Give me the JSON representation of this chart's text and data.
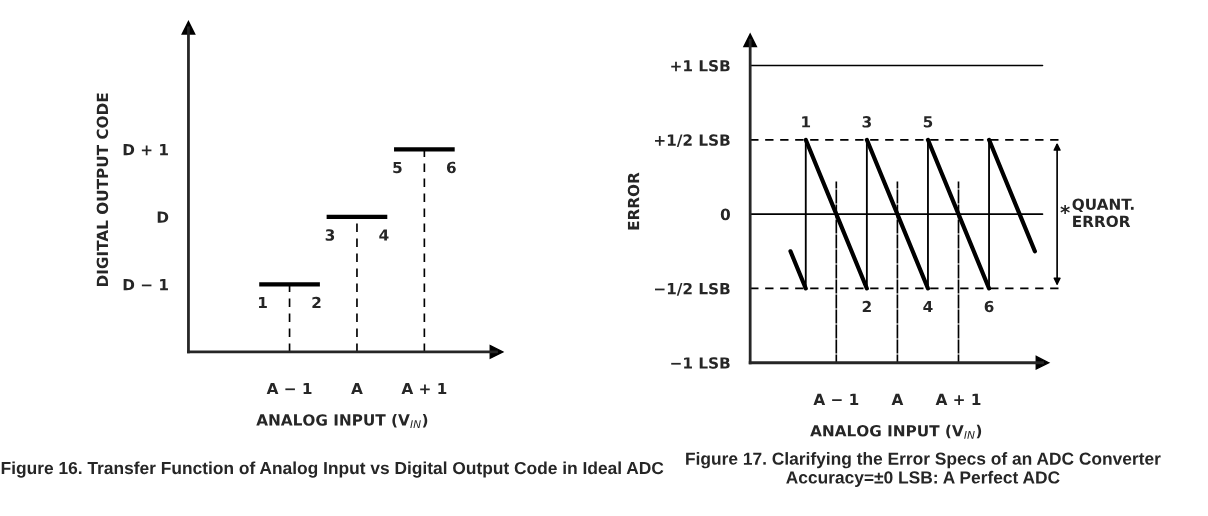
{
  "chart_data": [
    {
      "type": "other",
      "title": "Figure 16. Transfer Function of Analog Input vs Digital Output Code in Ideal ADC",
      "xlabel": "ANALOG INPUT (V$_{IN}$)",
      "ylabel": "DIGITAL OUTPUT CODE",
      "categories": [
        "A − 1",
        "A",
        "A + 1"
      ],
      "y_categories": [
        "D + 1",
        "D",
        "D − 1"
      ],
      "annotations": [
        "1",
        "2",
        "3",
        "4",
        "5",
        "6"
      ]
    },
    {
      "type": "line",
      "title": "Figure 17. Clarifying the Error Specs of an ADC Converter Accuracy=±0 LSB: A Perfect ADC",
      "xlabel": "ANALOG INPUT (V$_{IN}$)",
      "ylabel": "ERROR",
      "categories": [
        null,
        null,
        null,
        null,
        "A − 1",
        null,
        null,
        null,
        "A",
        null,
        null,
        null,
        "A + 1",
        null,
        null,
        null,
        null,
        null
      ],
      "ylim": [
        -1,
        1.17
      ],
      "yticks": [
        {
          "value": -1,
          "label": "−1 LSB"
        },
        {
          "value": -0.5,
          "label": "−1/2 LSB"
        },
        0,
        {
          "value": 0.5,
          "label": "+1/2 LSB"
        },
        {
          "value": 1,
          "label": "+1 LSB"
        }
      ],
      "series": [
        {
          "values": [
            null,
            -0.25,
            -0.5,
            null,
            null,
            null,
            null,
            null,
            null,
            null,
            null,
            null,
            null,
            null,
            null,
            null,
            null,
            null
          ],
          "color": "#000000",
          "line_style": "solid"
        },
        {
          "values": [
            null,
            null,
            0.5,
            0.25,
            0,
            -0.25,
            -0.5,
            null,
            null,
            null,
            null,
            null,
            null,
            null,
            null,
            null,
            null,
            null
          ],
          "color": "#000000",
          "line_style": "solid"
        },
        {
          "values": [
            null,
            null,
            null,
            null,
            null,
            null,
            0.5,
            0.25,
            0,
            -0.25,
            -0.5,
            null,
            null,
            null,
            null,
            null,
            null,
            null
          ],
          "color": "#000000",
          "line_style": "solid"
        },
        {
          "values": [
            null,
            null,
            null,
            null,
            null,
            null,
            null,
            null,
            null,
            null,
            0.5,
            0.25,
            0,
            -0.25,
            -0.5,
            null,
            null,
            null
          ],
          "color": "#000000",
          "line_style": "solid"
        },
        {
          "values": [
            null,
            null,
            null,
            null,
            null,
            null,
            null,
            null,
            null,
            null,
            null,
            null,
            null,
            null,
            0.5,
            0.25,
            0,
            -0.25
          ],
          "color": "#000000",
          "line_style": "solid"
        },
        {
          "type": "bar",
          "values": [
            null,
            null,
            1,
            null,
            null,
            null,
            1,
            null,
            null,
            null,
            1,
            null,
            null,
            null,
            1,
            null,
            null,
            null
          ],
          "base": [
            null,
            null,
            -0.5,
            null,
            null,
            null,
            -0.5,
            null,
            null,
            null,
            -0.5,
            null,
            null,
            null,
            -0.5,
            null,
            null,
            null
          ],
          "color": "#000000",
          "line_style": "solid"
        },
        {
          "type": "bar",
          "values": [
            null,
            null,
            null,
            null,
            1.22,
            null,
            null,
            null,
            1.22,
            null,
            null,
            null,
            1.22,
            null,
            null,
            null,
            null,
            null
          ],
          "base": [
            null,
            null,
            null,
            null,
            -1,
            null,
            null,
            null,
            -1,
            null,
            null,
            null,
            -1,
            null,
            null,
            null,
            null,
            null
          ],
          "color": "#000000",
          "line_style": "dashed"
        }
      ],
      "ref_lines": [
        {
          "axis": "y",
          "value": 1,
          "line_style": "solid"
        },
        {
          "axis": "y",
          "value": 0,
          "line_style": "solid"
        },
        {
          "axis": "y",
          "value": 0.5,
          "line_style": "dashed"
        },
        {
          "axis": "y",
          "value": -0.5,
          "line_style": "dashed"
        }
      ],
      "annotations": [
        "1",
        "2",
        "3",
        "4",
        "5",
        "6",
        "*",
        "QUANT.\nERROR"
      ],
      "grid": false
    }
  ]
}
